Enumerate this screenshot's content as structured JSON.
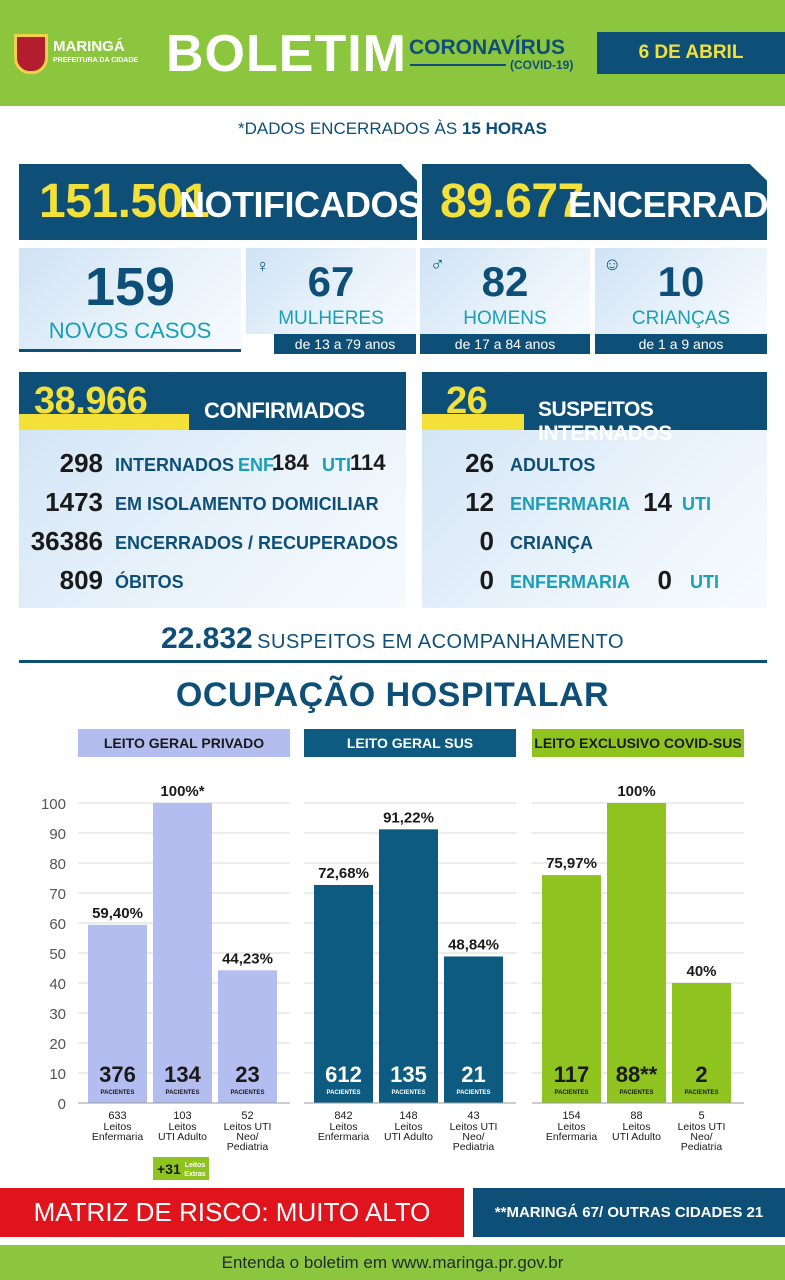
{
  "header": {
    "city": "MARINGÁ",
    "city_sub": "PREFEITURA DA CIDADE",
    "title": "BOLETIM",
    "subject": "CORONAVÍRUS",
    "subject_sub": "(COVID-19)",
    "date": "6 DE ABRIL"
  },
  "closing_note_prefix": "*DADOS ENCERRADOS ÀS",
  "closing_note_time": "15 HORAS",
  "totals": {
    "notified_value": "151.501",
    "notified_label": "NOTIFICADOS",
    "closed_value": "89.677",
    "closed_label": "ENCERRADOS"
  },
  "new_cases": {
    "value": "159",
    "label": "NOVOS CASOS",
    "groups": [
      {
        "value": "67",
        "label": "MULHERES",
        "age": "de 13 a 79 anos"
      },
      {
        "value": "82",
        "label": "HOMENS",
        "age": "de 17 a 84 anos"
      },
      {
        "value": "10",
        "label": "CRIANÇAS",
        "age": "de 1 a 9 anos"
      }
    ]
  },
  "confirmed": {
    "value": "38.966",
    "label": "CONFIRMADOS",
    "rows": [
      {
        "num": "298",
        "label": "INTERNADOS"
      },
      {
        "num": "1473",
        "label": "EM ISOLAMENTO DOMICILIAR"
      },
      {
        "num": "36386",
        "label": "ENCERRADOS / RECUPERADOS"
      },
      {
        "num": "809",
        "label": "ÓBITOS"
      }
    ],
    "enf_label": "ENF.",
    "enf_value": "184",
    "uti_label": "UTI",
    "uti_value": "114"
  },
  "suspects": {
    "value": "26",
    "label": "SUSPEITOS INTERNADOS",
    "adults_num": "26",
    "adults_label": "ADULTOS",
    "adult_ward_num": "12",
    "adult_ward_label": "ENFERMARIA",
    "adult_icu_num": "14",
    "adult_icu_label": "UTI",
    "child_num": "0",
    "child_label": "CRIANÇA",
    "child_ward_num": "0",
    "child_ward_label": "ENFERMARIA",
    "child_icu_num": "0",
    "child_icu_label": "UTI"
  },
  "monitoring": {
    "value": "22.832",
    "label": "SUSPEITOS EM ACOMPANHAMENTO"
  },
  "hospital_title": "OCUPAÇÃO HOSPITALAR",
  "colors": {
    "private": "#b4bdf0",
    "sus": "#0d5b80",
    "covid_sus": "#8fc31f",
    "navy": "#0e4f78",
    "green": "#8cc63f",
    "red": "#e0141c",
    "yellow": "#f3e13a"
  },
  "chart_data": {
    "type": "bar",
    "ylim": [
      0,
      100
    ],
    "yticks": [
      "0",
      "10",
      "20",
      "30",
      "40",
      "50",
      "60",
      "70",
      "80",
      "90",
      "100"
    ],
    "patients_label": "PACIENTES",
    "groups": [
      {
        "name": "LEITO GERAL PRIVADO",
        "color": "#b4bdf0",
        "label_color": "#1a1a1a",
        "bars": [
          {
            "value": 59.4,
            "label": "59,40%",
            "patients": "376",
            "beds": "633",
            "category": "Leitos Enfermaria"
          },
          {
            "value": 100,
            "label": "100%*",
            "patients": "134",
            "beds": "103",
            "category": "Leitos UTI Adulto"
          },
          {
            "value": 44.23,
            "label": "44,23%",
            "patients": "23",
            "beds": "52",
            "category": "Leitos UTI Neo/ Pediatria"
          }
        ],
        "extra_value": "+31",
        "extra_label": "Leitos Extras"
      },
      {
        "name": "LEITO GERAL SUS",
        "color": "#0d5b80",
        "label_color": "#ffffff",
        "bars": [
          {
            "value": 72.68,
            "label": "72,68%",
            "patients": "612",
            "beds": "842",
            "category": "Leitos Enfermaria"
          },
          {
            "value": 91.22,
            "label": "91,22%",
            "patients": "135",
            "beds": "148",
            "category": "Leitos UTI Adulto"
          },
          {
            "value": 48.84,
            "label": "48,84%",
            "patients": "21",
            "beds": "43",
            "category": "Leitos UTI Neo/ Pediatria"
          }
        ]
      },
      {
        "name": "LEITO EXCLUSIVO COVID-SUS",
        "color": "#8fc31f",
        "label_color": "#1a1a1a",
        "bars": [
          {
            "value": 75.97,
            "label": "75,97%",
            "patients": "117",
            "beds": "154",
            "category": "Leitos Enfermaria"
          },
          {
            "value": 100,
            "label": "100%",
            "patients": "88**",
            "beds": "88",
            "category": "Leitos UTI Adulto"
          },
          {
            "value": 40,
            "label": "40%",
            "patients": "2",
            "beds": "5",
            "category": "Leitos UTI Neo/ Pediatria"
          }
        ]
      }
    ]
  },
  "risk": "MATRIZ DE RISCO: MUITO ALTO",
  "origin_note": "**MARINGÁ 67/ OUTRAS CIDADES 21",
  "footer": "Entenda o boletim em www.maringa.pr.gov.br"
}
